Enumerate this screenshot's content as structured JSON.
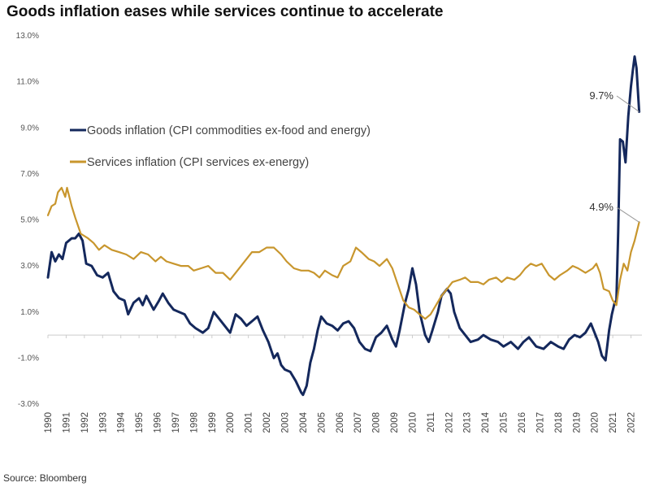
{
  "title": "Goods inflation eases while services continue to accelerate",
  "source": "Source: Bloomberg",
  "colors": {
    "goods": "#14285c",
    "services": "#c8962d",
    "axis": "#cccccc"
  },
  "chart_data": {
    "type": "line",
    "title": "Goods inflation eases while services continue to accelerate",
    "xlabel": "",
    "ylabel": "",
    "ylim": [
      -3.0,
      13.0
    ],
    "xlim": [
      1990.0,
      2022.6
    ],
    "y_ticks": [
      "-3.0%",
      "-1.0%",
      "1.0%",
      "3.0%",
      "5.0%",
      "7.0%",
      "9.0%",
      "11.0%",
      "13.0%"
    ],
    "x_ticks": [
      "1990",
      "1991",
      "1992",
      "1993",
      "1994",
      "1995",
      "1996",
      "1997",
      "1998",
      "1999",
      "2000",
      "2001",
      "2002",
      "2003",
      "2004",
      "2005",
      "2006",
      "2007",
      "2008",
      "2009",
      "2010",
      "2011",
      "2012",
      "2013",
      "2014",
      "2015",
      "2016",
      "2017",
      "2018",
      "2019",
      "2020",
      "2021",
      "2022"
    ],
    "grid": false,
    "legend": "upper-left",
    "series": [
      {
        "name": "Goods inflation (CPI commodities ex-food and energy)",
        "color": "#14285c",
        "points": [
          [
            1990.0,
            2.5
          ],
          [
            1990.2,
            3.6
          ],
          [
            1990.4,
            3.2
          ],
          [
            1990.6,
            3.5
          ],
          [
            1990.8,
            3.3
          ],
          [
            1991.0,
            4.0
          ],
          [
            1991.3,
            4.2
          ],
          [
            1991.5,
            4.2
          ],
          [
            1991.7,
            4.4
          ],
          [
            1991.9,
            4.1
          ],
          [
            1992.1,
            3.1
          ],
          [
            1992.4,
            3.0
          ],
          [
            1992.7,
            2.6
          ],
          [
            1993.0,
            2.5
          ],
          [
            1993.3,
            2.7
          ],
          [
            1993.6,
            1.9
          ],
          [
            1993.9,
            1.6
          ],
          [
            1994.2,
            1.5
          ],
          [
            1994.4,
            0.9
          ],
          [
            1994.7,
            1.4
          ],
          [
            1995.0,
            1.6
          ],
          [
            1995.2,
            1.3
          ],
          [
            1995.4,
            1.7
          ],
          [
            1995.6,
            1.4
          ],
          [
            1995.8,
            1.1
          ],
          [
            1996.1,
            1.5
          ],
          [
            1996.3,
            1.8
          ],
          [
            1996.6,
            1.4
          ],
          [
            1996.9,
            1.1
          ],
          [
            1997.2,
            1.0
          ],
          [
            1997.5,
            0.9
          ],
          [
            1997.8,
            0.5
          ],
          [
            1998.1,
            0.3
          ],
          [
            1998.5,
            0.1
          ],
          [
            1998.8,
            0.3
          ],
          [
            1999.1,
            1.0
          ],
          [
            1999.4,
            0.7
          ],
          [
            1999.7,
            0.4
          ],
          [
            2000.0,
            0.1
          ],
          [
            2000.3,
            0.9
          ],
          [
            2000.6,
            0.7
          ],
          [
            2000.9,
            0.4
          ],
          [
            2001.2,
            0.6
          ],
          [
            2001.5,
            0.8
          ],
          [
            2001.8,
            0.2
          ],
          [
            2002.1,
            -0.3
          ],
          [
            2002.4,
            -1.0
          ],
          [
            2002.6,
            -0.8
          ],
          [
            2002.8,
            -1.3
          ],
          [
            2003.0,
            -1.5
          ],
          [
            2003.3,
            -1.6
          ],
          [
            2003.6,
            -2.0
          ],
          [
            2003.9,
            -2.5
          ],
          [
            2004.0,
            -2.6
          ],
          [
            2004.2,
            -2.2
          ],
          [
            2004.4,
            -1.2
          ],
          [
            2004.6,
            -0.6
          ],
          [
            2004.8,
            0.2
          ],
          [
            2005.0,
            0.8
          ],
          [
            2005.3,
            0.5
          ],
          [
            2005.6,
            0.4
          ],
          [
            2005.9,
            0.2
          ],
          [
            2006.2,
            0.5
          ],
          [
            2006.5,
            0.6
          ],
          [
            2006.8,
            0.3
          ],
          [
            2007.1,
            -0.3
          ],
          [
            2007.4,
            -0.6
          ],
          [
            2007.7,
            -0.7
          ],
          [
            2008.0,
            -0.1
          ],
          [
            2008.3,
            0.1
          ],
          [
            2008.6,
            0.4
          ],
          [
            2008.9,
            -0.2
          ],
          [
            2009.1,
            -0.5
          ],
          [
            2009.3,
            0.2
          ],
          [
            2009.6,
            1.4
          ],
          [
            2009.8,
            2.0
          ],
          [
            2010.0,
            2.9
          ],
          [
            2010.2,
            2.2
          ],
          [
            2010.4,
            1.0
          ],
          [
            2010.7,
            0.0
          ],
          [
            2010.9,
            -0.3
          ],
          [
            2011.1,
            0.2
          ],
          [
            2011.4,
            1.0
          ],
          [
            2011.6,
            1.7
          ],
          [
            2011.9,
            2.0
          ],
          [
            2012.1,
            1.8
          ],
          [
            2012.3,
            1.0
          ],
          [
            2012.6,
            0.3
          ],
          [
            2012.9,
            0.0
          ],
          [
            2013.2,
            -0.3
          ],
          [
            2013.6,
            -0.2
          ],
          [
            2013.9,
            0.0
          ],
          [
            2014.3,
            -0.2
          ],
          [
            2014.7,
            -0.3
          ],
          [
            2015.0,
            -0.5
          ],
          [
            2015.4,
            -0.3
          ],
          [
            2015.8,
            -0.6
          ],
          [
            2016.1,
            -0.3
          ],
          [
            2016.4,
            -0.1
          ],
          [
            2016.8,
            -0.5
          ],
          [
            2017.2,
            -0.6
          ],
          [
            2017.6,
            -0.3
          ],
          [
            2018.0,
            -0.5
          ],
          [
            2018.3,
            -0.6
          ],
          [
            2018.6,
            -0.2
          ],
          [
            2018.9,
            0.0
          ],
          [
            2019.2,
            -0.1
          ],
          [
            2019.5,
            0.1
          ],
          [
            2019.8,
            0.5
          ],
          [
            2020.0,
            0.1
          ],
          [
            2020.2,
            -0.3
          ],
          [
            2020.4,
            -0.9
          ],
          [
            2020.6,
            -1.1
          ],
          [
            2020.8,
            0.2
          ],
          [
            2020.95,
            0.9
          ],
          [
            2021.1,
            1.4
          ],
          [
            2021.2,
            1.5
          ],
          [
            2021.3,
            4.5
          ],
          [
            2021.4,
            8.5
          ],
          [
            2021.55,
            8.4
          ],
          [
            2021.7,
            7.5
          ],
          [
            2021.85,
            9.5
          ],
          [
            2022.0,
            10.8
          ],
          [
            2022.1,
            11.5
          ],
          [
            2022.2,
            12.1
          ],
          [
            2022.3,
            11.6
          ],
          [
            2022.45,
            9.7
          ]
        ]
      },
      {
        "name": "Services inflation (CPI services ex-energy)",
        "color": "#c8962d",
        "points": [
          [
            1990.0,
            5.2
          ],
          [
            1990.2,
            5.6
          ],
          [
            1990.4,
            5.7
          ],
          [
            1990.55,
            6.2
          ],
          [
            1990.75,
            6.4
          ],
          [
            1990.95,
            6.0
          ],
          [
            1991.05,
            6.4
          ],
          [
            1991.3,
            5.6
          ],
          [
            1991.5,
            5.1
          ],
          [
            1991.8,
            4.4
          ],
          [
            1992.2,
            4.2
          ],
          [
            1992.5,
            4.0
          ],
          [
            1992.8,
            3.7
          ],
          [
            1993.1,
            3.9
          ],
          [
            1993.5,
            3.7
          ],
          [
            1993.9,
            3.6
          ],
          [
            1994.3,
            3.5
          ],
          [
            1994.7,
            3.3
          ],
          [
            1995.1,
            3.6
          ],
          [
            1995.5,
            3.5
          ],
          [
            1995.9,
            3.2
          ],
          [
            1996.2,
            3.4
          ],
          [
            1996.5,
            3.2
          ],
          [
            1996.9,
            3.1
          ],
          [
            1997.3,
            3.0
          ],
          [
            1997.7,
            3.0
          ],
          [
            1998.0,
            2.8
          ],
          [
            1998.4,
            2.9
          ],
          [
            1998.8,
            3.0
          ],
          [
            1999.2,
            2.7
          ],
          [
            1999.6,
            2.7
          ],
          [
            2000.0,
            2.4
          ],
          [
            2000.3,
            2.7
          ],
          [
            2000.6,
            3.0
          ],
          [
            2000.9,
            3.3
          ],
          [
            2001.2,
            3.6
          ],
          [
            2001.6,
            3.6
          ],
          [
            2002.0,
            3.8
          ],
          [
            2002.4,
            3.8
          ],
          [
            2002.8,
            3.5
          ],
          [
            2003.1,
            3.2
          ],
          [
            2003.5,
            2.9
          ],
          [
            2003.9,
            2.8
          ],
          [
            2004.3,
            2.8
          ],
          [
            2004.6,
            2.7
          ],
          [
            2004.9,
            2.5
          ],
          [
            2005.2,
            2.8
          ],
          [
            2005.6,
            2.6
          ],
          [
            2005.9,
            2.5
          ],
          [
            2006.2,
            3.0
          ],
          [
            2006.6,
            3.2
          ],
          [
            2006.9,
            3.8
          ],
          [
            2007.2,
            3.6
          ],
          [
            2007.6,
            3.3
          ],
          [
            2007.9,
            3.2
          ],
          [
            2008.2,
            3.0
          ],
          [
            2008.6,
            3.3
          ],
          [
            2008.9,
            2.9
          ],
          [
            2009.2,
            2.2
          ],
          [
            2009.5,
            1.5
          ],
          [
            2009.8,
            1.2
          ],
          [
            2010.1,
            1.1
          ],
          [
            2010.4,
            0.9
          ],
          [
            2010.7,
            0.7
          ],
          [
            2011.0,
            0.9
          ],
          [
            2011.3,
            1.3
          ],
          [
            2011.6,
            1.7
          ],
          [
            2011.9,
            2.0
          ],
          [
            2012.2,
            2.3
          ],
          [
            2012.6,
            2.4
          ],
          [
            2012.9,
            2.5
          ],
          [
            2013.2,
            2.3
          ],
          [
            2013.6,
            2.3
          ],
          [
            2013.9,
            2.2
          ],
          [
            2014.2,
            2.4
          ],
          [
            2014.6,
            2.5
          ],
          [
            2014.9,
            2.3
          ],
          [
            2015.2,
            2.5
          ],
          [
            2015.6,
            2.4
          ],
          [
            2015.9,
            2.6
          ],
          [
            2016.2,
            2.9
          ],
          [
            2016.5,
            3.1
          ],
          [
            2016.8,
            3.0
          ],
          [
            2017.1,
            3.1
          ],
          [
            2017.5,
            2.6
          ],
          [
            2017.8,
            2.4
          ],
          [
            2018.1,
            2.6
          ],
          [
            2018.5,
            2.8
          ],
          [
            2018.8,
            3.0
          ],
          [
            2019.1,
            2.9
          ],
          [
            2019.5,
            2.7
          ],
          [
            2019.9,
            2.9
          ],
          [
            2020.1,
            3.1
          ],
          [
            2020.3,
            2.7
          ],
          [
            2020.5,
            2.0
          ],
          [
            2020.8,
            1.9
          ],
          [
            2021.0,
            1.5
          ],
          [
            2021.2,
            1.3
          ],
          [
            2021.4,
            2.4
          ],
          [
            2021.6,
            3.1
          ],
          [
            2021.8,
            2.8
          ],
          [
            2022.0,
            3.6
          ],
          [
            2022.2,
            4.1
          ],
          [
            2022.45,
            4.9
          ]
        ]
      }
    ],
    "annotations": [
      {
        "label": "9.7%",
        "series": 0,
        "x": 2022.45,
        "y": 9.7
      },
      {
        "label": "4.9%",
        "series": 1,
        "x": 2022.45,
        "y": 4.9
      }
    ]
  }
}
